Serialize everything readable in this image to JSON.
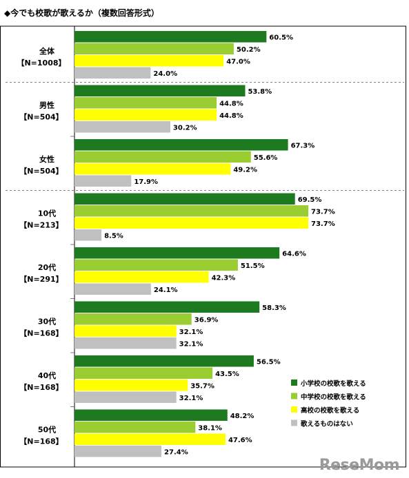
{
  "title": "◆今でも校歌が歌えるか（複数回答形式）",
  "watermark": "ReseMom",
  "colors": {
    "s1": "#1e7a1e",
    "s2": "#9acd32",
    "s3": "#ffff00",
    "s4": "#c0c0c0"
  },
  "chart_data": {
    "type": "bar",
    "orientation": "horizontal",
    "xlim": [
      0,
      80
    ],
    "legend_position": "bottom-right",
    "categories": [
      {
        "name": "全体",
        "n": "【N=1008】"
      },
      {
        "name": "男性",
        "n": "【N=504】"
      },
      {
        "name": "女性",
        "n": "【N=504】"
      },
      {
        "name": "10代",
        "n": "【N=213】"
      },
      {
        "name": "20代",
        "n": "【N=291】"
      },
      {
        "name": "30代",
        "n": "【N=168】"
      },
      {
        "name": "40代",
        "n": "【N=168】"
      },
      {
        "name": "50代",
        "n": "【N=168】"
      }
    ],
    "series": [
      {
        "name": "小学校の校歌を歌える",
        "values": [
          60.5,
          53.8,
          67.3,
          69.5,
          64.6,
          58.3,
          56.5,
          48.2
        ]
      },
      {
        "name": "中学校の校歌を歌える",
        "values": [
          50.2,
          44.8,
          55.6,
          73.7,
          51.5,
          36.9,
          43.5,
          38.1
        ]
      },
      {
        "name": "高校の校歌を歌える",
        "values": [
          47.0,
          44.8,
          49.2,
          73.7,
          42.3,
          32.1,
          35.7,
          47.6
        ]
      },
      {
        "name": "歌えるものはない",
        "values": [
          24.0,
          30.2,
          17.9,
          8.5,
          24.1,
          32.1,
          32.1,
          27.4
        ]
      }
    ],
    "value_suffix": "%"
  }
}
